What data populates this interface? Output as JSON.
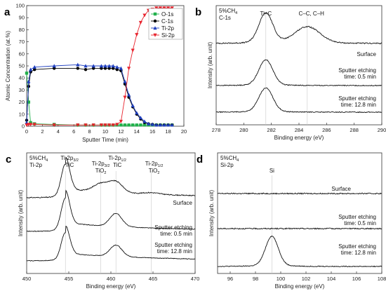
{
  "chart_data": [
    {
      "panel": "a",
      "type": "line",
      "xlabel": "Sputter Time (min)",
      "ylabel": "Atomic Concentration (at.%)",
      "xlim": [
        0,
        20
      ],
      "ylim": [
        0,
        100
      ],
      "xticks": [
        0,
        2,
        4,
        6,
        8,
        10,
        12,
        14,
        16,
        18,
        20
      ],
      "yticks": [
        0,
        10,
        20,
        30,
        40,
        50,
        60,
        70,
        80,
        90,
        100
      ],
      "legend_position": "top-right",
      "series": [
        {
          "name": "O-1s",
          "color": "#22b14c",
          "marker": "square",
          "x": [
            0,
            0.25,
            0.5,
            1,
            3.5,
            6.5,
            7.5,
            8.5,
            9.5,
            10,
            10.5,
            11,
            11.5,
            12,
            12.5,
            13,
            13.5,
            14,
            14.5,
            15,
            15.5,
            16,
            16.5,
            17,
            17.5,
            18,
            18.5
          ],
          "y": [
            44,
            20,
            3,
            2,
            1.5,
            1,
            1,
            1,
            1,
            1,
            1,
            1,
            1,
            1,
            1,
            1,
            1,
            1,
            1,
            1,
            1,
            1,
            1,
            1,
            1,
            1,
            1
          ]
        },
        {
          "name": "C-1s",
          "color": "#000000",
          "marker": "circle",
          "x": [
            0,
            0.25,
            0.5,
            1,
            3.5,
            6.5,
            7.5,
            8.5,
            9.5,
            10,
            10.5,
            11,
            11.5,
            12,
            12.5,
            13,
            13.5,
            14,
            14.5,
            15,
            15.5,
            16,
            16.5,
            17,
            17.5,
            18,
            18.5
          ],
          "y": [
            5,
            33,
            45,
            47,
            48,
            48,
            47,
            48,
            48,
            48,
            48,
            48,
            47,
            46,
            35,
            24,
            16,
            10,
            6,
            3,
            2,
            1.5,
            1,
            1,
            1,
            1,
            1
          ]
        },
        {
          "name": "Ti-2p",
          "color": "#1f3fbf",
          "marker": "triangle-up",
          "x": [
            0,
            0.25,
            0.5,
            1,
            3.5,
            6.5,
            7.5,
            8.5,
            9.5,
            10,
            10.5,
            11,
            11.5,
            12,
            12.5,
            13,
            13.5,
            14,
            14.5,
            15,
            15.5,
            16,
            16.5,
            17,
            17.5,
            18,
            18.5
          ],
          "y": [
            3,
            37,
            47,
            49,
            50,
            51,
            50,
            50,
            50,
            50,
            50,
            50,
            49,
            48,
            37,
            26,
            17,
            11,
            7,
            4,
            2,
            1.5,
            1,
            1,
            1,
            1,
            1
          ]
        },
        {
          "name": "Si-2p",
          "color": "#e8242e",
          "marker": "triangle-down",
          "x": [
            0,
            0.25,
            0.5,
            1,
            3.5,
            6.5,
            7.5,
            8.5,
            9.5,
            10,
            10.5,
            11,
            11.5,
            12,
            12.5,
            13,
            13.5,
            14,
            14.5,
            15,
            15.5,
            16,
            16.5,
            17,
            17.5,
            18,
            18.5
          ],
          "y": [
            1,
            1.5,
            1.5,
            1.5,
            1,
            1,
            1,
            1,
            1,
            1,
            1,
            1,
            1.5,
            4,
            24,
            48,
            63,
            76,
            86,
            92,
            96,
            97,
            98,
            98,
            98,
            98,
            98
          ]
        }
      ]
    },
    {
      "panel": "b",
      "type": "line",
      "condition": [
        "5%CH",
        "4",
        "C-1s"
      ],
      "xlabel": "Binding energy (eV)",
      "ylabel": "Intensity (arb. unit)",
      "xlim": [
        278,
        290
      ],
      "xticks": [
        278,
        280,
        282,
        284,
        286,
        288,
        290
      ],
      "reference_lines": [
        281.6,
        284.6
      ],
      "peak_labels": [
        {
          "text": "Ti–C",
          "x": 281.6
        },
        {
          "text": "C–C, C–H",
          "x": 284.9
        }
      ],
      "series": [
        {
          "name": "Surface",
          "peaks": [
            {
              "center": 281.6,
              "height": 1.0,
              "width": 0.5
            },
            {
              "center": 284.6,
              "height": 0.55,
              "width": 0.9
            }
          ],
          "noise": 0.04
        },
        {
          "name": "Sputter etching time: 0.5 min",
          "peaks": [
            {
              "center": 281.6,
              "height": 0.85,
              "width": 0.5
            }
          ],
          "noise": 0.03
        },
        {
          "name": "Sputter etching time: 12.8 min",
          "peaks": [
            {
              "center": 281.6,
              "height": 0.8,
              "width": 0.5
            }
          ],
          "noise": 0.03
        }
      ]
    },
    {
      "panel": "c",
      "type": "line",
      "condition": [
        "5%CH",
        "4",
        "Ti-2p"
      ],
      "xlabel": "Binding energy (eV)",
      "ylabel": "Intensity (arb. unit)",
      "xlim": [
        450,
        470
      ],
      "xticks": [
        450,
        455,
        460,
        465,
        470
      ],
      "reference_lines": [
        454.6,
        458.8,
        460.6,
        464.8
      ],
      "peak_labels": [
        {
          "lines": [
            [
              "Ti-2p",
              "3/2"
            ],
            [
              "TiC",
              ""
            ]
          ],
          "x": 454.6
        },
        {
          "lines": [
            [
              "Ti-2p",
              "3/2"
            ],
            [
              "TiO",
              "2"
            ]
          ],
          "x": 458.8
        },
        {
          "lines": [
            [
              "Ti-2p",
              "1/2"
            ],
            [
              "TiC",
              ""
            ]
          ],
          "x": 460.6
        },
        {
          "lines": [
            [
              "Ti-2p",
              "1/2"
            ],
            [
              "TiO",
              "2"
            ]
          ],
          "x": 464.8
        }
      ],
      "series": [
        {
          "name": "Surface",
          "peaks": [
            {
              "center": 454.6,
              "height": 1.0,
              "width": 0.5
            },
            {
              "center": 458.8,
              "height": 0.25,
              "width": 0.9
            },
            {
              "center": 460.6,
              "height": 0.32,
              "width": 0.8
            },
            {
              "center": 464.8,
              "height": 0.05,
              "width": 1.0
            }
          ],
          "tail": 0.25,
          "noise": 0.03
        },
        {
          "name": "Sputter etching time: 0.5 min",
          "peaks": [
            {
              "center": 454.6,
              "height": 1.0,
              "width": 0.5
            },
            {
              "center": 460.6,
              "height": 0.4,
              "width": 0.7
            }
          ],
          "tail": 0.25,
          "noise": 0.02
        },
        {
          "name": "Sputter etching time: 12.8 min",
          "peaks": [
            {
              "center": 454.6,
              "height": 0.85,
              "width": 0.5
            },
            {
              "center": 460.6,
              "height": 0.35,
              "width": 0.7
            }
          ],
          "tail": 0.22,
          "noise": 0.02
        }
      ]
    },
    {
      "panel": "d",
      "type": "line",
      "condition": [
        "5%CH",
        "4",
        "Si-2p"
      ],
      "xlabel": "Binding energy (eV)",
      "ylabel": "Intensity (arb. unit)",
      "xlim": [
        95,
        108
      ],
      "xticks": [
        96,
        98,
        100,
        102,
        104,
        106,
        108
      ],
      "reference_lines": [
        99.3
      ],
      "peak_labels": [
        {
          "text": "Si",
          "x": 99.3
        }
      ],
      "series": [
        {
          "name": "Surface",
          "peaks": [],
          "noise": 0.04
        },
        {
          "name": "Sputter etching time: 0.5 min",
          "peaks": [],
          "noise": 0.04
        },
        {
          "name": "Sputter etching time: 12.8 min",
          "peaks": [
            {
              "center": 99.3,
              "height": 1.0,
              "width": 0.5
            }
          ],
          "noise": 0.03
        }
      ]
    }
  ]
}
